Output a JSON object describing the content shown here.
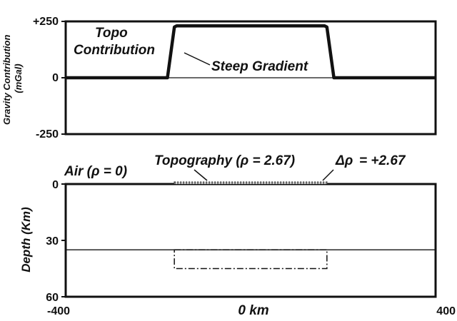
{
  "chart_data": [
    {
      "type": "line",
      "panel": "gravity",
      "ylabel_line1": "Gravity Contribution",
      "ylabel_line2": "(mGal)",
      "xlim": [
        -400,
        400
      ],
      "ylim": [
        -250,
        250
      ],
      "yticks": [
        {
          "value": 250,
          "label": "+250"
        },
        {
          "value": 0,
          "label": "0"
        },
        {
          "value": -250,
          "label": "-250"
        }
      ],
      "series": [
        {
          "x": [
            -400,
            -180,
            -165,
            -160,
            160,
            165,
            180,
            400
          ],
          "y": [
            0,
            0,
            225,
            230,
            230,
            225,
            0,
            0
          ]
        }
      ],
      "annotations": {
        "topo_line1": "Topo",
        "topo_line2": "Contribution",
        "steep_gradient": "Steep Gradient"
      }
    },
    {
      "type": "diagram",
      "panel": "depth",
      "ylabel": "Depth (Km)",
      "xlabel": "0 km",
      "xlim": [
        -400,
        400
      ],
      "ylim": [
        60,
        0
      ],
      "yticks": [
        {
          "value": 0,
          "label": "0"
        },
        {
          "value": 30,
          "label": "30"
        },
        {
          "value": 60,
          "label": "60"
        }
      ],
      "xticks": [
        {
          "value": -400,
          "label": "-400"
        },
        {
          "value": 400,
          "label": "400"
        }
      ],
      "topography": {
        "x_start": -165,
        "x_end": 165,
        "top_km": -1,
        "bottom_km": 0
      },
      "moho_depth_km": 35,
      "root_box": {
        "x_start": -165,
        "x_end": 165,
        "top_km": 35,
        "bottom_km": 45
      },
      "labels": {
        "air": "Air (ρ = 0)",
        "topography": "Topography (ρ = 2.67)",
        "delta_rho_symbol": "Δρ",
        "delta_rho_value": "=   +2.67"
      }
    }
  ]
}
